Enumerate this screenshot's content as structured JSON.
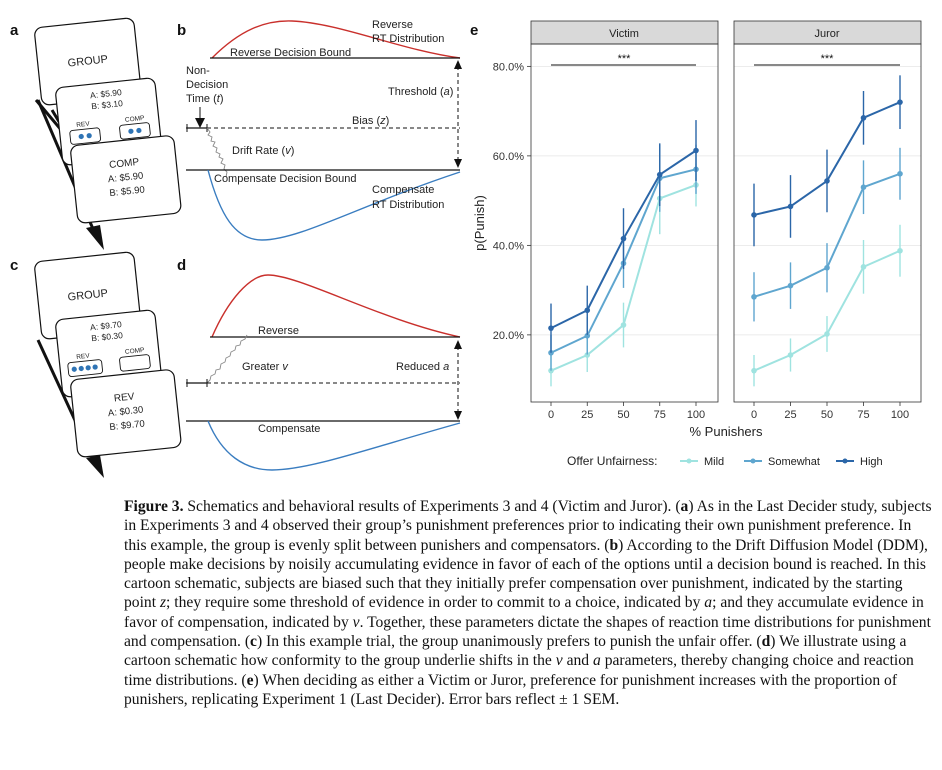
{
  "panel_labels": {
    "a": "a",
    "b": "b",
    "c": "c",
    "d": "d",
    "e": "e"
  },
  "panel_a": {
    "card_group": "GROUP",
    "card_offer": {
      "a_line": "A: $5.90",
      "b_line": "B: $3.10",
      "rev": "REV",
      "comp": "COMP"
    },
    "card_choice": {
      "title": "COMP",
      "a_line": "A: $5.90",
      "b_line": "B: $5.90"
    }
  },
  "panel_c": {
    "card_group": "GROUP",
    "card_offer": {
      "a_line": "A: $9.70",
      "b_line": "B: $0.30",
      "rev": "REV",
      "comp": "COMP"
    },
    "card_choice": {
      "title": "REV",
      "a_line": "A: $0.30",
      "b_line": "B: $9.70"
    }
  },
  "panel_b": {
    "reverse_dist": [
      "Reverse",
      "RT Distribution"
    ],
    "reverse_bound": "Reverse Decision Bound",
    "nondecision": [
      "Non-",
      "Decision",
      "Time (",
      "t",
      ")"
    ],
    "threshold": "Threshold (",
    "threshold_sym": "a",
    "bias": "Bias (",
    "bias_sym": "z",
    "drift": "Drift Rate (",
    "drift_sym": "v",
    "compensate_bound": "Compensate Decision Bound",
    "compensate_dist": [
      "Compensate",
      "RT Distribution"
    ]
  },
  "panel_d": {
    "reverse": "Reverse",
    "greater_v": "Greater ",
    "greater_v_sym": "v",
    "reduced_a": "Reduced ",
    "reduced_a_sym": "a",
    "compensate": "Compensate"
  },
  "chart_data": {
    "type": "line",
    "facets": [
      "Victim",
      "Juror"
    ],
    "x": [
      0,
      25,
      50,
      75,
      100
    ],
    "xlabel": "% Punishers",
    "ylabel": "p(Punish)",
    "ylim": [
      0.05,
      0.85
    ],
    "yticks": [
      0.2,
      0.4,
      0.6,
      0.8
    ],
    "ytick_labels": [
      "20.0%",
      "40.0%",
      "60.0%",
      "80.0%"
    ],
    "significance": "***",
    "legend_title": "Offer Unfairness:",
    "legend_position": "bottom",
    "series": [
      {
        "name": "Mild",
        "color": "#9fe3e0",
        "victim": [
          0.12,
          0.155,
          0.222,
          0.505,
          0.535
        ],
        "victim_sem": [
          0.035,
          0.038,
          0.05,
          0.08,
          0.048
        ],
        "juror": [
          0.12,
          0.155,
          0.202,
          0.352,
          0.388
        ],
        "juror_sem": [
          0.035,
          0.037,
          0.04,
          0.06,
          0.058
        ]
      },
      {
        "name": "Somewhat",
        "color": "#5fa6cf",
        "victim": [
          0.16,
          0.198,
          0.36,
          0.55,
          0.57
        ],
        "victim_sem": [
          0.04,
          0.042,
          0.055,
          0.075,
          0.055
        ],
        "juror": [
          0.285,
          0.31,
          0.35,
          0.53,
          0.56
        ],
        "juror_sem": [
          0.055,
          0.052,
          0.055,
          0.06,
          0.058
        ]
      },
      {
        "name": "High",
        "color": "#2b66a8",
        "victim": [
          0.215,
          0.255,
          0.415,
          0.558,
          0.612
        ],
        "victim_sem": [
          0.055,
          0.055,
          0.068,
          0.07,
          0.068
        ],
        "juror": [
          0.468,
          0.487,
          0.544,
          0.685,
          0.72
        ],
        "juror_sem": [
          0.07,
          0.07,
          0.07,
          0.06,
          0.06
        ]
      }
    ]
  },
  "caption": {
    "fig_label": "Figure 3.",
    "t1": " Schematics and behavioral results of Experiments 3 and 4 (Victim and Juror). (",
    "la": "a",
    "t2": ") As in the Last Decider study, subjects in Experiments 3 and 4 observed their group’s punishment preferences prior to indicating their own punishment preference. In this example, the group is evenly split between punishers and compensators. (",
    "lb": "b",
    "t3": ") According to the Drift Diffusion Model (DDM), people make decisions by noisily accumulating evidence in favor of each of the options until a decision bound is reached. In this cartoon schematic, subjects are biased such that they initially prefer compensation over punishment, indicated by the starting point ",
    "z": "z",
    "t4": "; they require some threshold of evidence in order to commit to a choice, indicated by ",
    "a": "a",
    "t5": "; and they accumulate evidence in favor of compensation, indicated by ",
    "v": "v",
    "t6": ". Together, these parameters dictate the shapes of reaction time distributions for punishment and compensation. (",
    "lc": "c",
    "t7": ") In this example trial, the group unanimously prefers to punish the unfair offer. (",
    "ld": "d",
    "t8": ") We illustrate using a cartoon schematic how conformity to the group underlie shifts in the ",
    "v2": "v",
    "t9": " and ",
    "a2": "a",
    "t10": " parameters, thereby changing choice and reaction time distributions. (",
    "le": "e",
    "t11": ") When deciding as either a Victim or Juror, preference for punishment increases with the proportion of punishers, replicating Experiment 1 (Last Decider). Error bars reflect ± 1 SEM."
  }
}
